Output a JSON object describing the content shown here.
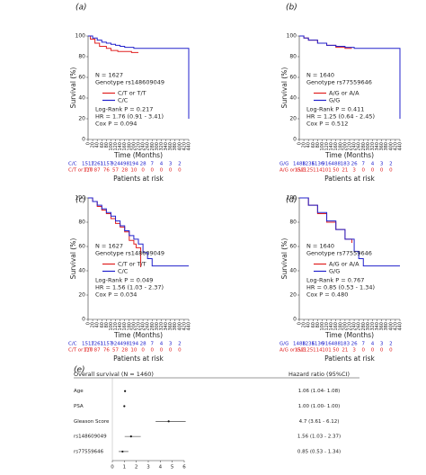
{
  "chart_data": [
    {
      "type": "km",
      "panel_label": "(a)",
      "ylabel": "Survival (%)",
      "xlabel": "Time (Months)",
      "xlim": [
        0,
        440
      ],
      "ylim": [
        0,
        100
      ],
      "xticks": [
        0,
        20,
        40,
        60,
        80,
        100,
        120,
        140,
        160,
        180,
        200,
        220,
        240,
        260,
        280,
        300,
        320,
        340,
        360,
        380,
        400,
        420,
        440
      ],
      "yticks": [
        0,
        20,
        40,
        60,
        80,
        100
      ],
      "annotations": [
        "N = 1627",
        "Genotype rs148609049",
        "Log-Rank P = 0.217",
        "HR = 1.76 (0.91 - 3.41)",
        "Cox P = 0.094"
      ],
      "series": [
        {
          "name": "C/T or T/T",
          "color": "#e02020",
          "x": [
            0,
            10,
            30,
            50,
            80,
            100,
            130,
            160,
            190,
            220
          ],
          "values": [
            100,
            97,
            93,
            90,
            88,
            86,
            85,
            85,
            84,
            84
          ]
        },
        {
          "name": "C/C",
          "color": "#2222cc",
          "x": [
            0,
            20,
            40,
            60,
            80,
            100,
            120,
            140,
            160,
            180,
            200,
            240,
            280,
            320,
            360,
            400,
            440,
            440
          ],
          "values": [
            100,
            98,
            96,
            94,
            93,
            92,
            91,
            90,
            89,
            89,
            88,
            88,
            88,
            88,
            88,
            88,
            88,
            20
          ]
        }
      ],
      "risk_table": {
        "title": "Patients at risk",
        "x": [
          0,
          40,
          80,
          120,
          160,
          200,
          240,
          280,
          320,
          360,
          400
        ],
        "rows": [
          {
            "name": "C/C",
            "color": "#2222cc",
            "values": [
              1517,
              1261,
              1157,
              924,
              498,
              194,
              28,
              7,
              4,
              3,
              2
            ]
          },
          {
            "name": "C/T or T/T",
            "color": "#e02020",
            "values": [
              110,
              87,
              76,
              57,
              28,
              10,
              0,
              0,
              0,
              0,
              0
            ]
          }
        ]
      }
    },
    {
      "type": "km",
      "panel_label": "(b)",
      "ylabel": "Survival (%)",
      "xlabel": "Time (Months)",
      "xlim": [
        0,
        440
      ],
      "ylim": [
        0,
        100
      ],
      "xticks": [
        0,
        20,
        40,
        60,
        80,
        100,
        120,
        140,
        160,
        180,
        200,
        220,
        240,
        260,
        280,
        300,
        320,
        340,
        360,
        380,
        400,
        420,
        440
      ],
      "yticks": [
        0,
        20,
        40,
        60,
        80,
        100
      ],
      "annotations": [
        "N = 1640",
        "Genotype rs77559646",
        "Log-Rank P = 0.411",
        "HR = 1.25 (0.64 - 2.45)",
        "Cox P = 0.512"
      ],
      "series": [
        {
          "name": "A/G or A/A",
          "color": "#e02020",
          "x": [
            0,
            20,
            40,
            80,
            120,
            160,
            200,
            230
          ],
          "values": [
            100,
            98,
            96,
            93,
            91,
            89,
            88,
            88
          ]
        },
        {
          "name": "G/G",
          "color": "#2222cc",
          "x": [
            0,
            20,
            40,
            80,
            120,
            160,
            200,
            240,
            280,
            320,
            360,
            400,
            440,
            440
          ],
          "values": [
            100,
            98,
            96,
            93,
            91,
            90,
            89,
            88,
            88,
            88,
            88,
            88,
            88,
            20
          ]
        }
      ],
      "risk_table": {
        "title": "Patients at risk",
        "x": [
          0,
          40,
          80,
          120,
          160,
          200,
          240,
          280,
          320,
          360,
          400
        ],
        "rows": [
          {
            "name": "G/G",
            "color": "#2222cc",
            "values": [
              1488,
              1236,
              1136,
              916,
              488,
              183,
              26,
              7,
              4,
              3,
              2
            ]
          },
          {
            "name": "A/G or G/G",
            "color": "#e02020",
            "values": [
              152,
              125,
              114,
              101,
              50,
              21,
              3,
              0,
              0,
              0,
              0
            ]
          }
        ]
      }
    },
    {
      "type": "km",
      "panel_label": "(c)",
      "ylabel": "Survival (%)",
      "xlabel": "Time (Months)",
      "xlim": [
        0,
        440
      ],
      "ylim": [
        0,
        100
      ],
      "xticks": [
        0,
        20,
        40,
        60,
        80,
        100,
        120,
        140,
        160,
        180,
        200,
        220,
        240,
        260,
        280,
        300,
        320,
        340,
        360,
        380,
        400,
        420,
        440
      ],
      "yticks": [
        0,
        20,
        40,
        60,
        80,
        100
      ],
      "annotations": [
        "N = 1627",
        "Genotype rs148609049",
        "Log-Rank P = 0.049",
        "HR = 1.56 (1.03 - 2.37)",
        "Cox P = 0.034"
      ],
      "series": [
        {
          "name": "C/T or T/T",
          "color": "#e02020",
          "x": [
            0,
            20,
            40,
            60,
            80,
            100,
            120,
            140,
            160,
            180,
            200,
            210,
            230
          ],
          "values": [
            100,
            97,
            93,
            90,
            87,
            83,
            79,
            76,
            72,
            65,
            62,
            59,
            43
          ]
        },
        {
          "name": "C/C",
          "color": "#2222cc",
          "x": [
            0,
            20,
            40,
            60,
            80,
            100,
            120,
            140,
            160,
            180,
            200,
            220,
            240,
            260,
            280,
            300,
            440
          ],
          "values": [
            100,
            97,
            94,
            91,
            88,
            85,
            81,
            77,
            73,
            69,
            66,
            62,
            55,
            50,
            44,
            44,
            44
          ]
        }
      ],
      "risk_table": {
        "title": "Patients at risk",
        "x": [
          0,
          40,
          80,
          120,
          160,
          200,
          240,
          280,
          320,
          360,
          400
        ],
        "rows": [
          {
            "name": "C/C",
            "color": "#2222cc",
            "values": [
              1517,
              1261,
              1157,
              924,
              498,
              194,
              28,
              7,
              4,
              3,
              2
            ]
          },
          {
            "name": "C/T or T/T",
            "color": "#e02020",
            "values": [
              110,
              87,
              76,
              57,
              28,
              10,
              0,
              0,
              0,
              0,
              0
            ]
          }
        ]
      }
    },
    {
      "type": "km",
      "panel_label": "(d)",
      "ylabel": "Survival (%)",
      "xlabel": "Time (Months)",
      "xlim": [
        0,
        440
      ],
      "ylim": [
        0,
        100
      ],
      "xticks": [
        0,
        20,
        40,
        60,
        80,
        100,
        120,
        140,
        160,
        180,
        200,
        220,
        240,
        260,
        280,
        300,
        320,
        340,
        360,
        380,
        400,
        420,
        440
      ],
      "yticks": [
        0,
        20,
        40,
        60,
        80,
        100
      ],
      "annotations": [
        "N = 1640",
        "Genotype rs77559646",
        "Log-Rank P = 0.767",
        "HR = 0.85 (0.53 - 1.34)",
        "Cox P = 0.480"
      ],
      "series": [
        {
          "name": "A/G or A/A",
          "color": "#e02020",
          "x": [
            0,
            40,
            80,
            120,
            160,
            200,
            230
          ],
          "values": [
            100,
            94,
            87,
            80,
            74,
            66,
            63
          ]
        },
        {
          "name": "G/G",
          "color": "#2222cc",
          "x": [
            0,
            40,
            80,
            120,
            160,
            200,
            240,
            260,
            280,
            320,
            440
          ],
          "values": [
            100,
            94,
            88,
            81,
            74,
            66,
            56,
            50,
            44,
            44,
            44
          ]
        }
      ],
      "risk_table": {
        "title": "Patients at risk",
        "x": [
          0,
          40,
          80,
          120,
          160,
          200,
          240,
          280,
          320,
          360,
          400
        ],
        "rows": [
          {
            "name": "G/G",
            "color": "#2222cc",
            "values": [
              1488,
              1236,
              1136,
              916,
              488,
              183,
              26,
              7,
              4,
              3,
              2
            ]
          },
          {
            "name": "A/G or G/G",
            "color": "#e02020",
            "values": [
              152,
              125,
              114,
              101,
              50,
              21,
              3,
              0,
              0,
              0,
              0
            ]
          }
        ]
      }
    },
    {
      "type": "forest",
      "panel_label": "(e)",
      "title": "Overall survival (N = 1460)",
      "value_header": "Hazard ratio (95%CI)",
      "categories": [
        "Age",
        "PSA",
        "Gleason Score",
        "rs148609049",
        "rs77559646"
      ],
      "values": [
        1.06,
        1.0,
        4.7,
        1.56,
        0.85
      ],
      "lower": [
        1.04,
        1.0,
        3.61,
        1.03,
        0.53
      ],
      "upper": [
        1.08,
        1.0,
        6.12,
        2.37,
        1.34
      ],
      "value_labels": [
        "1.06 (1.04- 1.08)",
        "1.00 (1.00- 1.00)",
        "4.7 (3.61 - 6.12)",
        "1.56 (1.03 - 2.37)",
        "0.85 (0.53 - 1.34)"
      ],
      "xlim": [
        0,
        6
      ],
      "xticks": [
        0,
        1,
        2,
        3,
        4,
        5,
        6
      ]
    }
  ]
}
